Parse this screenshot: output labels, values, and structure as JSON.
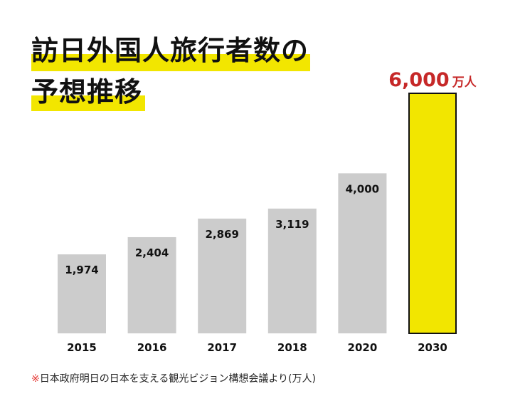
{
  "title": {
    "line1": "訪日外国人旅行者数の",
    "line2": "予想推移"
  },
  "colors": {
    "bar": "#cccccc",
    "highlight_bar": "#f2e600",
    "highlight_border": "#111111",
    "highlight_label": "#c62828",
    "title_marker": "#f2e600",
    "note_mark": "#e53935"
  },
  "chart_data": {
    "type": "bar",
    "categories": [
      "2015",
      "2016",
      "2017",
      "2018",
      "2020",
      "2030"
    ],
    "values": [
      1974,
      2404,
      2869,
      3119,
      4000,
      6000
    ],
    "value_labels": [
      "1,974",
      "2,404",
      "2,869",
      "3,119",
      "4,000",
      "6,000"
    ],
    "highlight": {
      "index": 5,
      "unit": "万人"
    },
    "ylim": [
      0,
      6000
    ],
    "grid": false,
    "xlabel": "",
    "ylabel": ""
  },
  "footnote": {
    "mark": "※",
    "text": "日本政府明日の日本を支える観光ビジョン構想会議より(万人)"
  }
}
